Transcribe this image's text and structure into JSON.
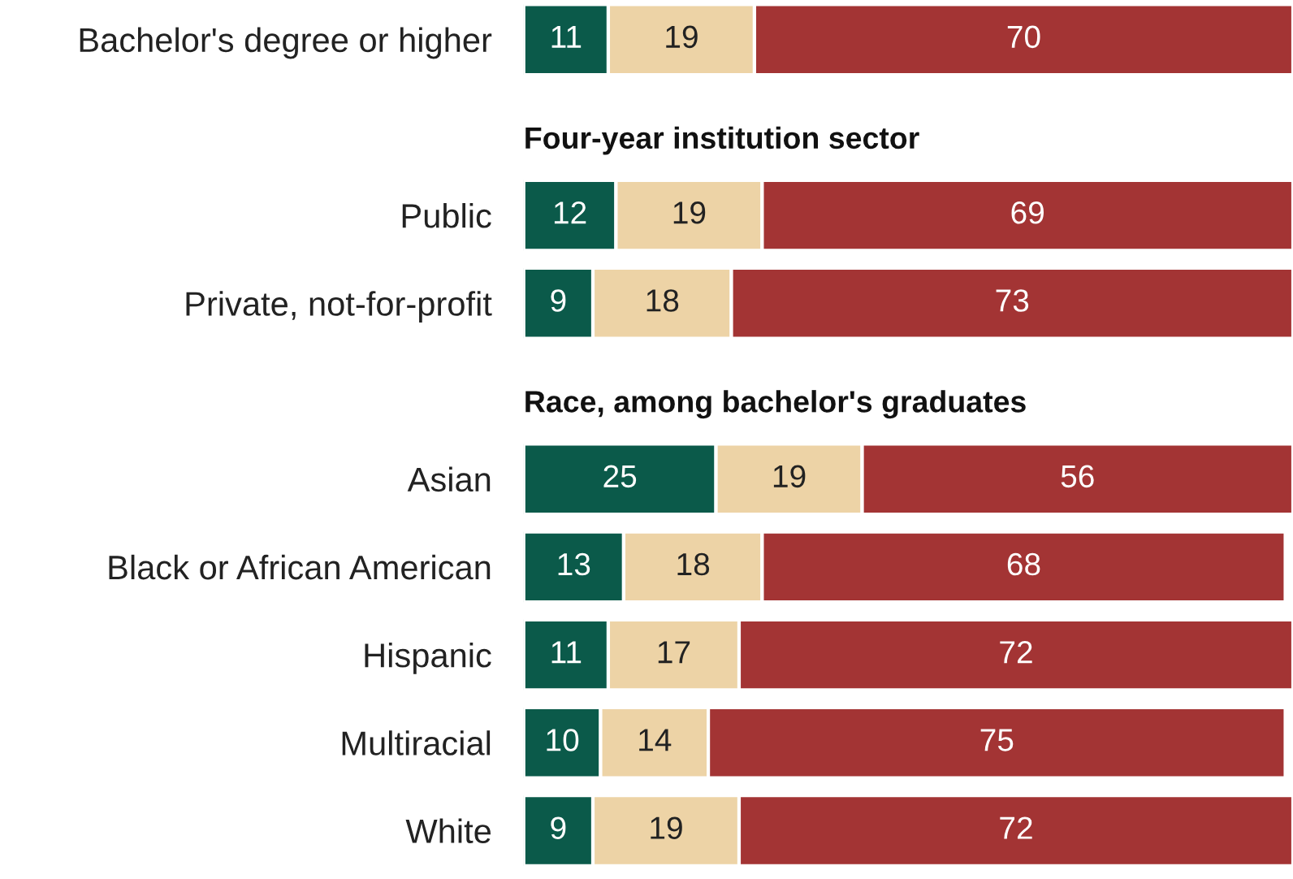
{
  "chart_data": {
    "type": "bar",
    "orientation": "horizontal",
    "stacked": true,
    "data_labels": true,
    "tick_labels": "y",
    "grid": false,
    "legend": false,
    "categories": [
      "Bachelor's degree or higher",
      null,
      "Public",
      "Private, not-for-profit",
      null,
      "Asian",
      "Black or African American",
      "Hispanic",
      "Multiracial",
      "White"
    ],
    "annotations": [
      "Four-year institution sector",
      "Race, among bachelor's graduates"
    ],
    "series": [
      {
        "color": "#0b5a4a",
        "values": [
          11,
          null,
          12,
          9,
          null,
          25,
          13,
          11,
          10,
          9
        ]
      },
      {
        "color": "#edd3a6",
        "values": [
          19,
          null,
          19,
          18,
          null,
          19,
          18,
          17,
          14,
          19
        ]
      },
      {
        "color": "#a33434",
        "values": [
          70,
          null,
          69,
          73,
          null,
          56,
          68,
          72,
          75,
          72
        ]
      }
    ]
  }
}
